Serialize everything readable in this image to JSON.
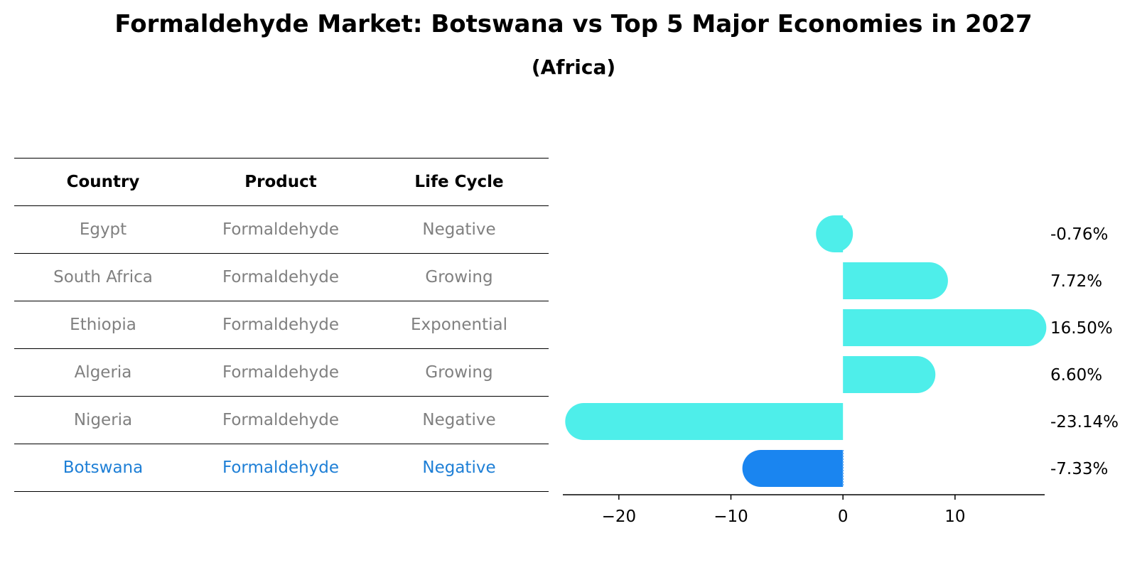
{
  "title": "Formaldehyde Market: Botswana vs Top 5 Major Economies in 2027",
  "subtitle": "(Africa)",
  "table": {
    "headers": [
      "Country",
      "Product",
      "Life Cycle"
    ],
    "rows": [
      {
        "country": "Egypt",
        "product": "Formaldehyde",
        "life_cycle": "Negative"
      },
      {
        "country": "South Africa",
        "product": "Formaldehyde",
        "life_cycle": "Growing"
      },
      {
        "country": "Ethiopia",
        "product": "Formaldehyde",
        "life_cycle": "Exponential"
      },
      {
        "country": "Algeria",
        "product": "Formaldehyde",
        "life_cycle": "Growing"
      },
      {
        "country": "Nigeria",
        "product": "Formaldehyde",
        "life_cycle": "Negative"
      },
      {
        "country": "Botswana",
        "product": "Formaldehyde",
        "life_cycle": "Negative"
      }
    ]
  },
  "chart_data": {
    "type": "bar",
    "orientation": "horizontal",
    "categories": [
      "Egypt",
      "South Africa",
      "Ethiopia",
      "Algeria",
      "Nigeria",
      "Botswana"
    ],
    "values": [
      -0.76,
      7.72,
      16.5,
      6.6,
      -23.14,
      -7.33
    ],
    "value_labels": [
      "-0.76%",
      "7.72%",
      "16.50%",
      "6.60%",
      "-23.14%",
      "-7.33%"
    ],
    "xlim": [
      -25,
      18
    ],
    "xticks": [
      -20,
      -10,
      0,
      10
    ],
    "xtick_labels": [
      "−20",
      "−10",
      "0",
      "10"
    ],
    "highlight": "Botswana",
    "colors": {
      "default": "#4eeeea",
      "highlight": "#1a85f0"
    },
    "grid": false
  }
}
